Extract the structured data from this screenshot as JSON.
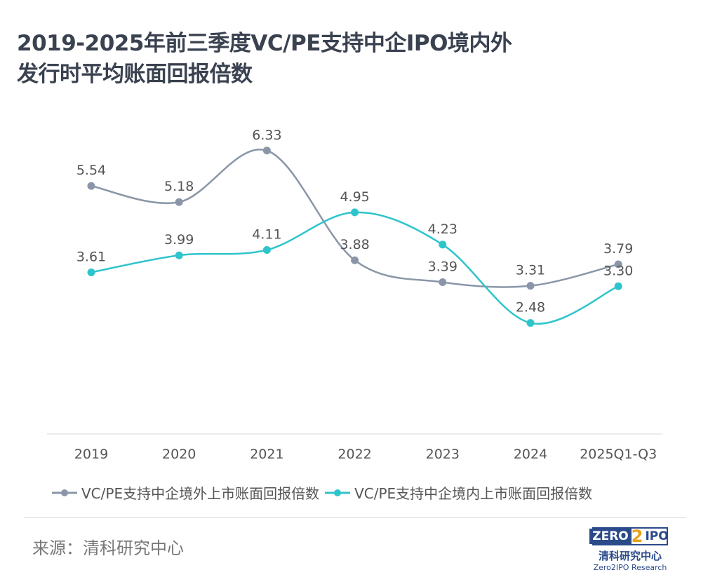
{
  "title_line1": "2019-2025年前三季度VC/PE支持中企IPO境内外",
  "title_line2": "发行时平均账面回报倍数",
  "source": "来源：清科研究中心",
  "logo": {
    "brand_left": "ZERO",
    "brand_mid": "2",
    "brand_right": "IPO",
    "cn": "清科研究中心",
    "en": "Zero2IPO Research"
  },
  "chart_data": {
    "type": "line",
    "title": "2019-2025年前三季度VC/PE支持中企IPO境内外发行时平均账面回报倍数",
    "categories": [
      "2019",
      "2020",
      "2021",
      "2022",
      "2023",
      "2024",
      "2025Q1-Q3"
    ],
    "ylim": [
      0,
      7
    ],
    "grid": false,
    "smooth": true,
    "legend_position": "bottom",
    "series": [
      {
        "name": "VC/PE支持中企境外上市账面回报倍数",
        "color": "#8a96a8",
        "values": [
          5.54,
          5.18,
          6.33,
          3.88,
          3.39,
          3.31,
          3.79
        ]
      },
      {
        "name": "VC/PE支持中企境内上市账面回报倍数",
        "color": "#2ec4cc",
        "values": [
          3.61,
          3.99,
          4.11,
          4.95,
          4.23,
          2.48,
          3.3
        ]
      }
    ]
  }
}
